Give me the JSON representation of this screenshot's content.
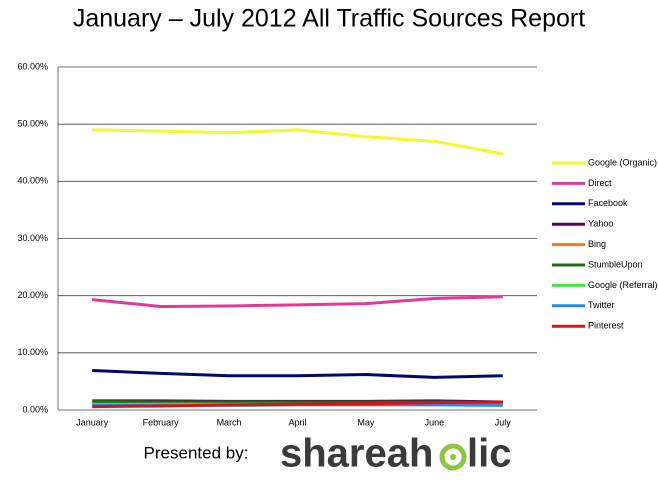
{
  "chart_data": {
    "type": "line",
    "title": "January – July 2012 All Traffic Sources Report",
    "categories": [
      "January",
      "February",
      "March",
      "April",
      "May",
      "June",
      "July"
    ],
    "series": [
      {
        "name": "Google (Organic)",
        "color": "#f7f52b",
        "values": [
          49.0,
          48.8,
          48.5,
          49.0,
          47.8,
          47.0,
          44.8
        ]
      },
      {
        "name": "Direct",
        "color": "#e0399a",
        "values": [
          19.3,
          18.1,
          18.2,
          18.4,
          18.6,
          19.5,
          19.8
        ]
      },
      {
        "name": "Facebook",
        "color": "#000a6e",
        "values": [
          6.9,
          6.4,
          6.0,
          6.0,
          6.2,
          5.7,
          6.0
        ]
      },
      {
        "name": "Yahoo",
        "color": "#5a0058",
        "values": [
          1.6,
          1.6,
          1.5,
          1.5,
          1.5,
          1.6,
          1.4
        ]
      },
      {
        "name": "Bing",
        "color": "#f07a1e",
        "values": [
          1.2,
          1.2,
          1.2,
          1.2,
          1.2,
          1.2,
          1.0
        ]
      },
      {
        "name": "StumbleUpon",
        "color": "#1e6a12",
        "values": [
          1.5,
          1.4,
          1.4,
          1.4,
          1.4,
          1.4,
          1.3
        ]
      },
      {
        "name": "Google (Referral)",
        "color": "#3ee83e",
        "values": [
          1.0,
          1.0,
          1.0,
          1.0,
          1.0,
          1.0,
          1.0
        ]
      },
      {
        "name": "Twitter",
        "color": "#2a8ae0",
        "values": [
          0.8,
          0.8,
          0.8,
          0.9,
          0.9,
          0.9,
          0.8
        ]
      },
      {
        "name": "Pinterest",
        "color": "#e01010",
        "values": [
          0.6,
          0.7,
          0.9,
          1.0,
          1.1,
          1.3,
          1.4
        ]
      }
    ],
    "ylim": [
      0,
      60
    ],
    "yticks": [
      {
        "value": 0,
        "label": "0.00%"
      },
      {
        "value": 10,
        "label": "10.00%"
      },
      {
        "value": 20,
        "label": "20.00%"
      },
      {
        "value": 30,
        "label": "30.00%"
      },
      {
        "value": 40,
        "label": "40.00%"
      },
      {
        "value": 50,
        "label": "50.00%"
      },
      {
        "value": 60,
        "label": "60.00%"
      }
    ],
    "grid": true,
    "legend": "right"
  },
  "footer": {
    "label": "Presented by:",
    "logo_left": "shareah",
    "logo_right": "lic"
  }
}
